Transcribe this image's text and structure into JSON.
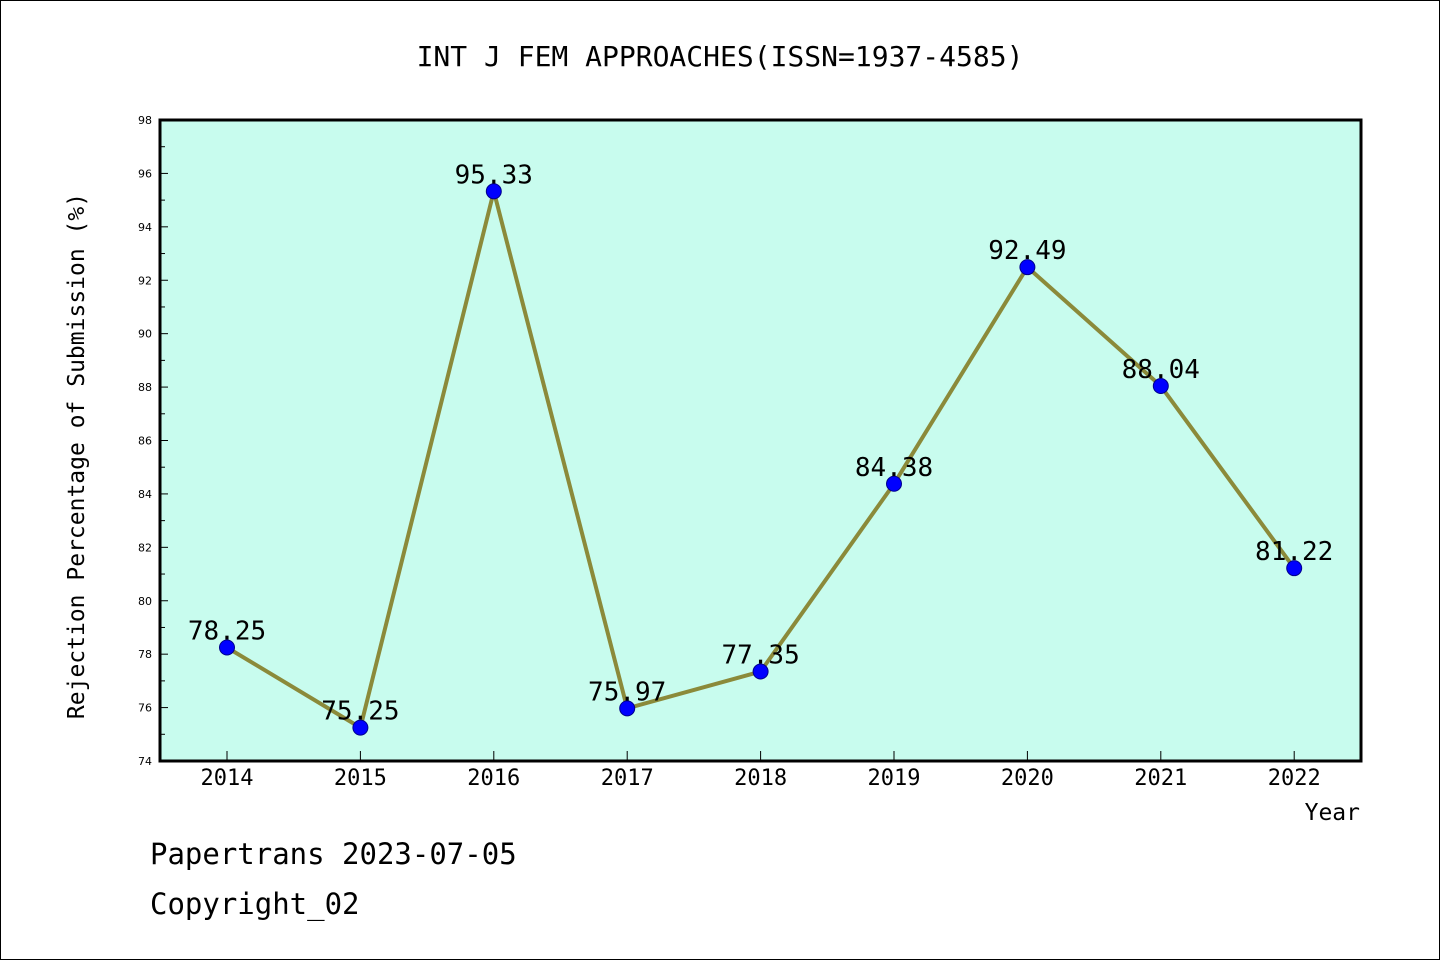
{
  "chart_data": {
    "type": "line",
    "title": "INT J FEM APPROACHES(ISSN=1937-4585)",
    "xlabel": "Year",
    "ylabel": "Rejection Percentage of Submission (%)",
    "categories": [
      "2014",
      "2015",
      "2016",
      "2017",
      "2018",
      "2019",
      "2020",
      "2021",
      "2022"
    ],
    "values": [
      78.25,
      75.25,
      95.33,
      75.97,
      77.35,
      84.38,
      92.49,
      88.04,
      81.22
    ],
    "data_labels": [
      "78.25",
      "75.25",
      "95.33",
      "75.97",
      "77.35",
      "84.38",
      "92.49",
      "88.04",
      "81.22"
    ],
    "ylim": [
      74,
      98
    ],
    "yticks": [
      74,
      76,
      78,
      80,
      82,
      84,
      86,
      88,
      90,
      92,
      94,
      96,
      98
    ],
    "grid": false,
    "legend": "none",
    "colors": {
      "plot_background": "#c8fcee",
      "line": "#8b8a3a",
      "marker": "#0000ff",
      "axes": "#000000"
    }
  },
  "footer": {
    "source": "Papertrans 2023-07-05",
    "copyright": "Copyright_02"
  }
}
